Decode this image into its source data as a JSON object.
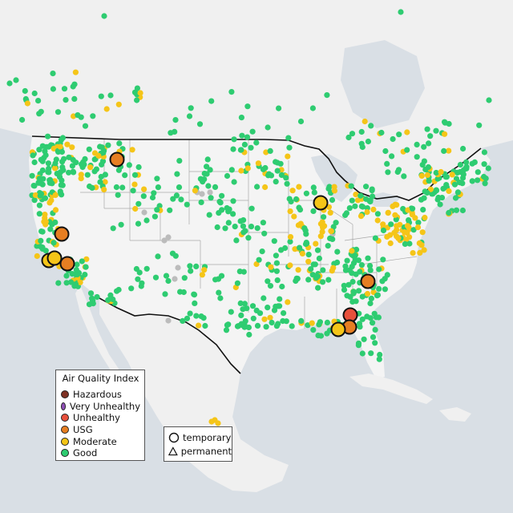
{
  "legend": {
    "title": "Air Quality Index",
    "items": [
      {
        "label": "Hazardous",
        "color": "#7e3124"
      },
      {
        "label": "Very Unhealthy",
        "color": "#8f4fb5"
      },
      {
        "label": "Unhealthy",
        "color": "#e8503c"
      },
      {
        "label": "USG",
        "color": "#e67e22"
      },
      {
        "label": "Moderate",
        "color": "#f5c518"
      },
      {
        "label": "Good",
        "color": "#2ecc71"
      }
    ]
  },
  "monitor_types": {
    "items": [
      {
        "label": "temporary",
        "symbol": "circle"
      },
      {
        "label": "permanent",
        "symbol": "triangle"
      }
    ]
  },
  "colors": {
    "water": "#d9dfe5",
    "land": "#f0f0f0",
    "us_land": "#f4f4f4",
    "border": "#111111",
    "state_lines": "#a8a8a8",
    "no_data": "#bcbcbc"
  },
  "large_markers": [
    {
      "category": "USG"
    },
    {
      "category": "USG"
    },
    {
      "category": "USG"
    },
    {
      "category": "Moderate"
    },
    {
      "category": "Moderate"
    },
    {
      "category": "USG"
    },
    {
      "category": "Unhealthy"
    },
    {
      "category": "USG"
    },
    {
      "category": "Moderate"
    },
    {
      "category": "Moderate"
    }
  ]
}
